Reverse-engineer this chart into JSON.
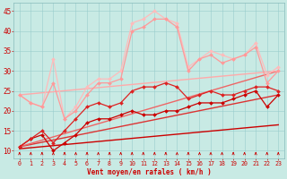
{
  "xlabel": "Vent moyen/en rafales ( km/h )",
  "xlim": [
    -0.5,
    23.5
  ],
  "ylim": [
    8,
    47
  ],
  "yticks": [
    10,
    15,
    20,
    25,
    30,
    35,
    40,
    45
  ],
  "xticks": [
    0,
    1,
    2,
    3,
    4,
    5,
    6,
    7,
    8,
    9,
    10,
    11,
    12,
    13,
    14,
    15,
    16,
    17,
    18,
    19,
    20,
    21,
    22,
    23
  ],
  "bg_color": "#c8eae4",
  "grid_color": "#99cccc",
  "lines": [
    {
      "x": [
        0,
        23
      ],
      "y": [
        10.5,
        16.5
      ],
      "color": "#cc0000",
      "lw": 1.0,
      "marker": null,
      "zorder": 2
    },
    {
      "x": [
        0,
        23
      ],
      "y": [
        11,
        24
      ],
      "color": "#dd3333",
      "lw": 1.0,
      "marker": null,
      "zorder": 2
    },
    {
      "x": [
        0,
        23
      ],
      "y": [
        11,
        30
      ],
      "color": "#ee6666",
      "lw": 1.0,
      "marker": null,
      "zorder": 2
    },
    {
      "x": [
        0,
        23
      ],
      "y": [
        24,
        30
      ],
      "color": "#ffaaaa",
      "lw": 1.0,
      "marker": null,
      "zorder": 2
    },
    {
      "x": [
        0,
        1,
        2,
        3,
        4,
        5,
        6,
        7,
        8,
        9,
        10,
        11,
        12,
        13,
        14,
        15,
        16,
        17,
        18,
        19,
        20,
        21,
        22,
        23
      ],
      "y": [
        11,
        13,
        14,
        10,
        12,
        14,
        17,
        18,
        18,
        19,
        20,
        19,
        19,
        20,
        20,
        21,
        22,
        22,
        22,
        23,
        24,
        25,
        21,
        24
      ],
      "color": "#cc0000",
      "lw": 0.9,
      "marker": "D",
      "ms": 2.0,
      "zorder": 5
    },
    {
      "x": [
        0,
        1,
        2,
        3,
        4,
        5,
        6,
        7,
        8,
        9,
        10,
        11,
        12,
        13,
        14,
        15,
        16,
        17,
        18,
        19,
        20,
        21,
        22,
        23
      ],
      "y": [
        11,
        13,
        15,
        12,
        15,
        18,
        21,
        22,
        21,
        22,
        25,
        26,
        26,
        27,
        26,
        23,
        24,
        25,
        24,
        24,
        25,
        26,
        26,
        25
      ],
      "color": "#dd2222",
      "lw": 0.9,
      "marker": "D",
      "ms": 2.0,
      "zorder": 5
    },
    {
      "x": [
        0,
        1,
        2,
        3,
        4,
        5,
        6,
        7,
        8,
        9,
        10,
        11,
        12,
        13,
        14,
        15,
        16,
        17,
        18,
        19,
        20,
        21,
        22,
        23
      ],
      "y": [
        24,
        22,
        21,
        27,
        18,
        20,
        24,
        27,
        27,
        28,
        40,
        41,
        43,
        43,
        41,
        30,
        33,
        34,
        32,
        33,
        34,
        36,
        27,
        30
      ],
      "color": "#ff9999",
      "lw": 0.9,
      "marker": "D",
      "ms": 2.0,
      "zorder": 4
    },
    {
      "x": [
        0,
        1,
        2,
        3,
        4,
        5,
        6,
        7,
        8,
        9,
        10,
        11,
        12,
        13,
        14,
        15,
        16,
        17,
        18,
        19,
        20,
        21,
        22,
        23
      ],
      "y": [
        24,
        22,
        21,
        33,
        18,
        21,
        26,
        28,
        28,
        30,
        42,
        43,
        45,
        43,
        42,
        31,
        33,
        35,
        34,
        33,
        34,
        37,
        29,
        31
      ],
      "color": "#ffbbbb",
      "lw": 0.9,
      "marker": "D",
      "ms": 2.0,
      "zorder": 3
    }
  ],
  "wind_arrows": {
    "x": [
      0,
      1,
      2,
      3,
      4,
      5,
      6,
      7,
      8,
      9,
      10,
      11,
      12,
      13,
      14,
      15,
      16,
      17,
      18,
      19,
      20,
      21,
      22,
      23
    ],
    "y_base": 8.8,
    "y_tip": 9.7,
    "color": "#cc0000"
  }
}
